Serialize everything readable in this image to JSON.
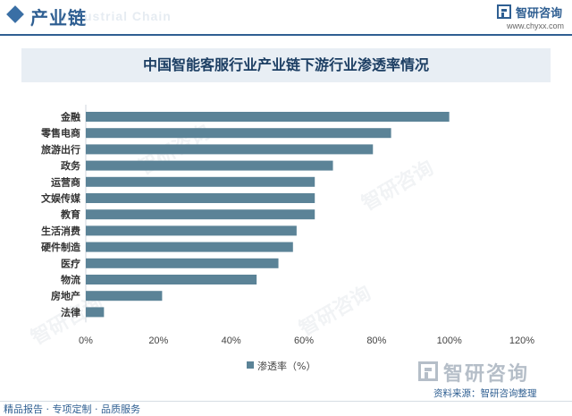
{
  "header": {
    "title": "产业链",
    "bg_text": "Industrial Chain"
  },
  "logo": {
    "name": "智研咨询",
    "url": "www.chyxx.com"
  },
  "watermark": "智研咨询",
  "colors": {
    "bar": "#5b8397",
    "accent": "#2f5f92",
    "title_band": "#e8eef4"
  },
  "chart_data": {
    "type": "bar",
    "orientation": "horizontal",
    "title": "中国智能客服行业产业链下游行业渗透率情况",
    "categories": [
      "金融",
      "零售电商",
      "旅游出行",
      "政务",
      "运营商",
      "文娱传媒",
      "教育",
      "生活消费",
      "硬件制造",
      "医疗",
      "物流",
      "房地产",
      "法律"
    ],
    "series": [
      {
        "name": "渗透率（%）",
        "values": [
          100,
          84,
          79,
          68,
          63,
          63,
          63,
          58,
          57,
          53,
          47,
          21,
          5
        ]
      }
    ],
    "xlim": [
      0,
      120
    ],
    "x_ticks": [
      "0%",
      "20%",
      "40%",
      "60%",
      "80%",
      "100%",
      "120%"
    ],
    "legend_position": "bottom",
    "grid": false
  },
  "footer": {
    "source": "资料来源：智研咨询整理",
    "tagline": "精品报告 · 专项定制 · 品质服务"
  }
}
